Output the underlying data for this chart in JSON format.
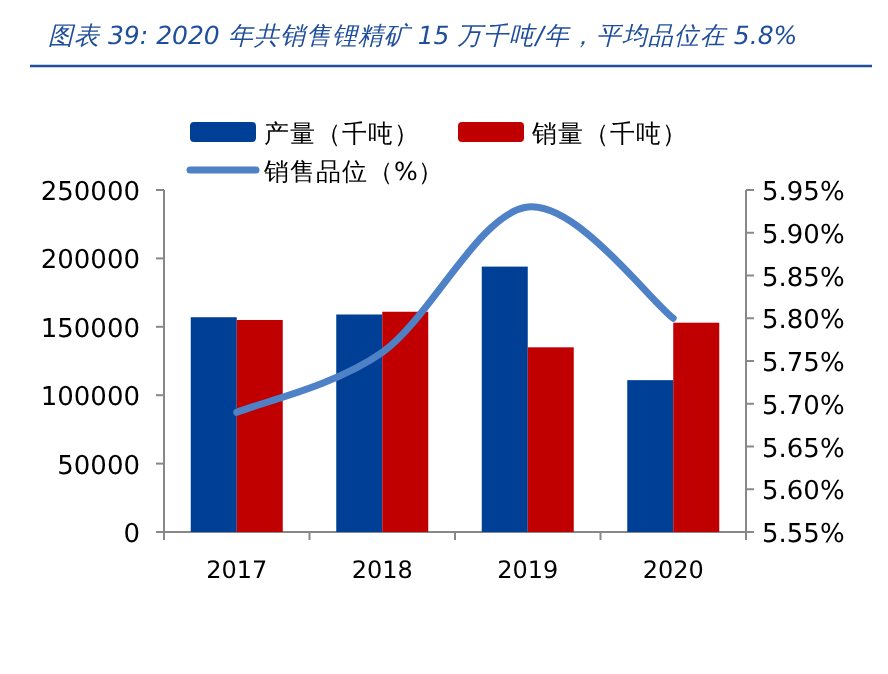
{
  "chart_data": {
    "type": "bar",
    "title": "图表 39: 2020 年共销售锂精矿 15 万千吨/年，平均品位在 5.8%",
    "categories": [
      "2017",
      "2018",
      "2019",
      "2020"
    ],
    "series": [
      {
        "name": "产量（千吨）",
        "color": "#003f96",
        "values": [
          157000,
          159000,
          194000,
          111000
        ]
      },
      {
        "name": "销量（千吨）",
        "color": "#c00000",
        "values": [
          155000,
          161000,
          135000,
          153000
        ]
      },
      {
        "name": "销售品位（%）",
        "type": "line",
        "axis": "y2",
        "color": "#4f81c7",
        "values": [
          5.69,
          5.76,
          5.93,
          5.8
        ]
      }
    ],
    "ylim": [
      0,
      250000
    ],
    "yticks": [
      0,
      50000,
      100000,
      150000,
      200000,
      250000
    ],
    "y2lim": [
      5.55,
      5.95
    ],
    "y2ticks": [
      {
        "value": 5.55,
        "label": "5.55%"
      },
      {
        "value": 5.6,
        "label": "5.60%"
      },
      {
        "value": 5.65,
        "label": "5.65%"
      },
      {
        "value": 5.7,
        "label": "5.70%"
      },
      {
        "value": 5.75,
        "label": "5.75%"
      },
      {
        "value": 5.8,
        "label": "5.80%"
      },
      {
        "value": 5.85,
        "label": "5.85%"
      },
      {
        "value": 5.9,
        "label": "5.90%"
      },
      {
        "value": 5.95,
        "label": "5.95%"
      }
    ],
    "legend": "top",
    "grid": false
  }
}
